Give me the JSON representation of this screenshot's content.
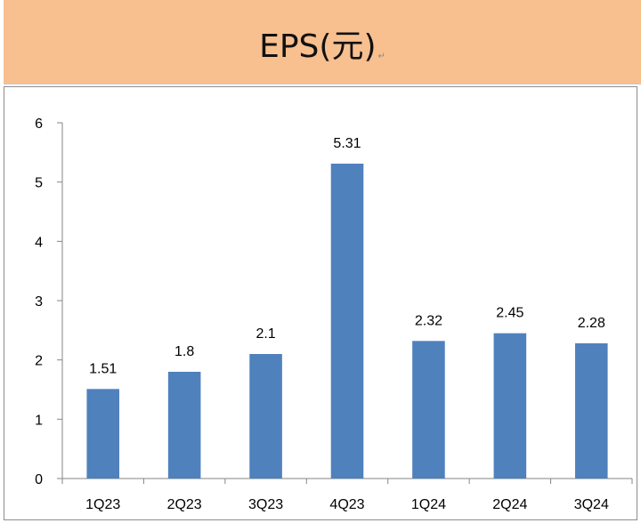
{
  "header": {
    "title": "EPS(元)",
    "return_mark": "↵"
  },
  "chart_data": {
    "type": "bar",
    "title": "EPS(元)",
    "categories": [
      "1Q23",
      "2Q23",
      "3Q23",
      "4Q23",
      "1Q24",
      "2Q24",
      "3Q24"
    ],
    "values": [
      1.51,
      1.8,
      2.1,
      5.31,
      2.32,
      2.45,
      2.28
    ],
    "data_labels": [
      "1.51",
      "1.8",
      "2.1",
      "5.31",
      "2.32",
      "2.45",
      "2.28"
    ],
    "yticks": [
      "0",
      "1",
      "2",
      "3",
      "4",
      "5",
      "6"
    ],
    "ylim": [
      0,
      6
    ],
    "xlabel": "",
    "ylabel": "",
    "grid": false,
    "legend": "none",
    "bar_color": "#4F81BD",
    "axis_color": "#868686"
  }
}
